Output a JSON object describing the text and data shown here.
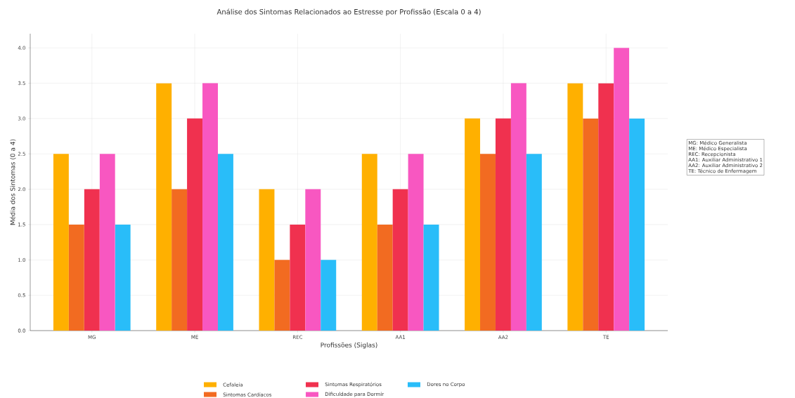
{
  "chart_data": {
    "type": "bar",
    "title": "Análise dos Sintomas Relacionados ao Estresse por Profissão (Escala 0 a 4)",
    "xlabel": "Profissões (Siglas)",
    "ylabel": "Média dos Sintomas (0 a 4)",
    "categories": [
      "MG",
      "ME",
      "REC",
      "AA1",
      "AA2",
      "TE"
    ],
    "series": [
      {
        "name": "Cefaleia",
        "color": "#ffb000",
        "values": [
          2.5,
          3.5,
          2.0,
          2.5,
          3.0,
          3.5
        ]
      },
      {
        "name": "Sintomas Cardíacos",
        "color": "#f26b21",
        "values": [
          1.5,
          2.0,
          1.0,
          1.5,
          2.5,
          3.0
        ]
      },
      {
        "name": "Sintomas Respiratórios",
        "color": "#f0314f",
        "values": [
          2.0,
          3.0,
          1.5,
          2.0,
          3.0,
          3.5
        ]
      },
      {
        "name": "Dificuldade para Dormir",
        "color": "#f857c1",
        "values": [
          2.5,
          3.5,
          2.0,
          2.5,
          3.5,
          4.0
        ]
      },
      {
        "name": "Dores no Corpo",
        "color": "#29bdf9",
        "values": [
          1.5,
          2.5,
          1.0,
          1.5,
          2.5,
          3.0
        ]
      }
    ],
    "ylim": [
      0,
      4.2
    ],
    "yticks": [
      {
        "value": 0,
        "label": "0.0"
      },
      {
        "value": 0.5,
        "label": "0.5"
      },
      {
        "value": 1,
        "label": "1.0"
      },
      {
        "value": 1.5,
        "label": "1.5"
      },
      {
        "value": 2,
        "label": "2.0"
      },
      {
        "value": 2.5,
        "label": "2.5"
      },
      {
        "value": 3,
        "label": "3.0"
      },
      {
        "value": 3.5,
        "label": "3.5"
      },
      {
        "value": 4,
        "label": "4.0"
      }
    ],
    "grid": true,
    "legend": "bottom",
    "annotations": [
      "MG: Médico Generalista",
      "ME: Médico Especialista",
      "REC: Recepcionista",
      "AA1: Auxiliar Administrativo 1",
      "AA2: Auxiliar Administrativo 2",
      "TE: Técnico de Enfermagem"
    ]
  }
}
